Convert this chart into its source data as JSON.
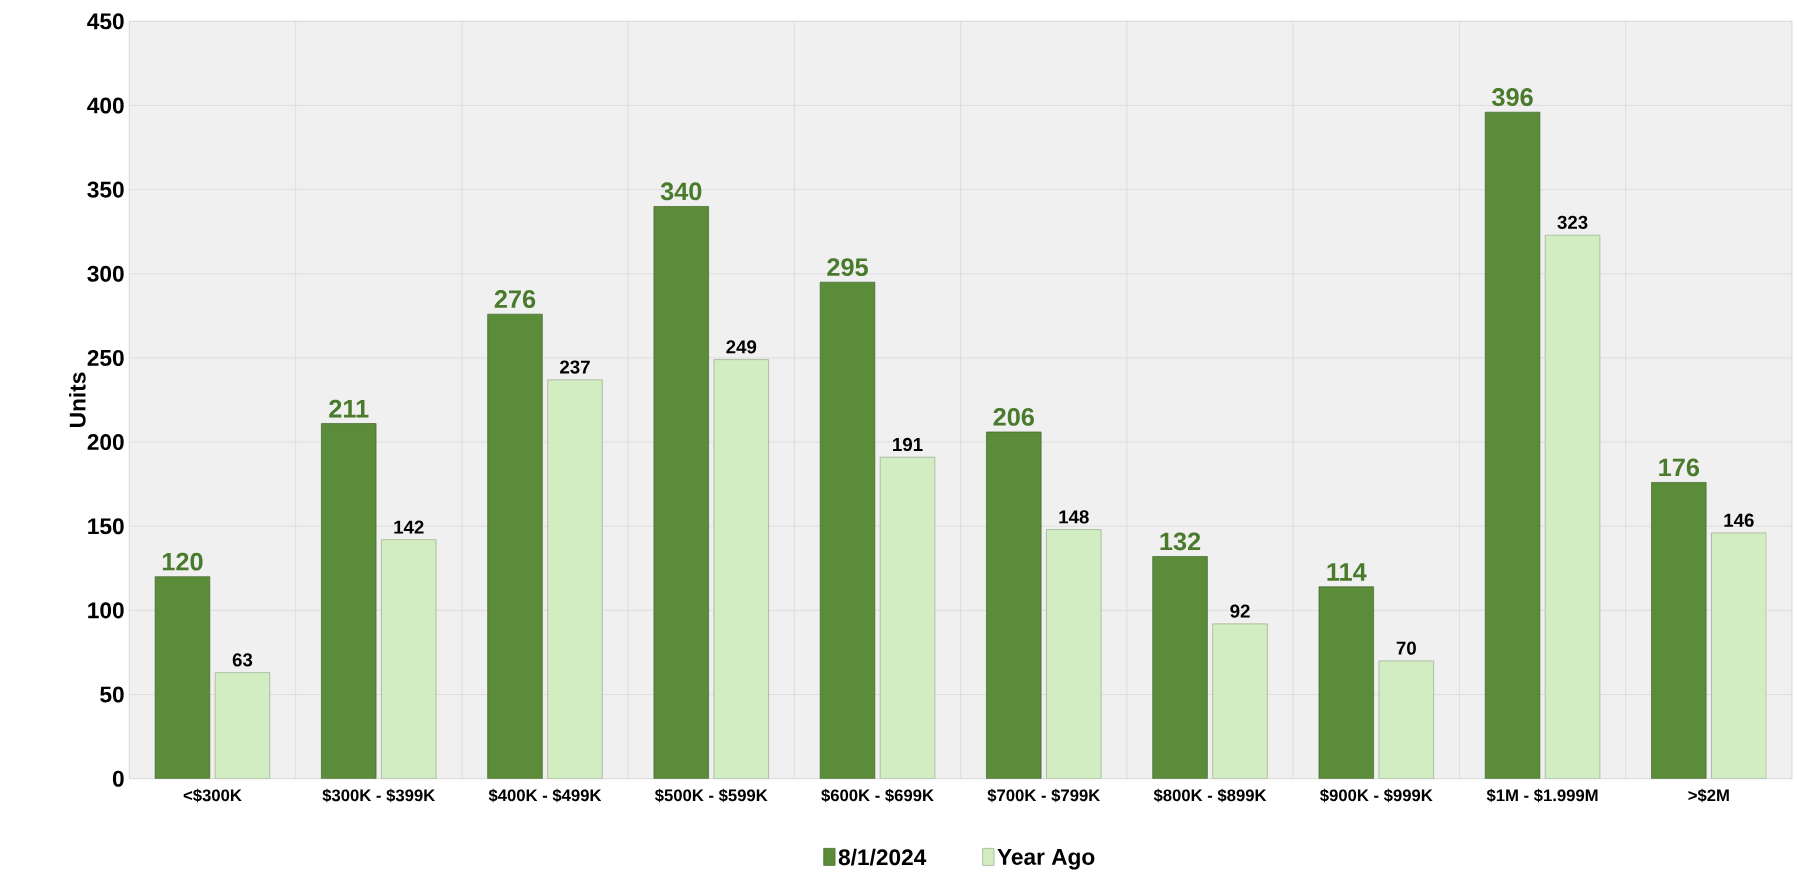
{
  "chart_data": {
    "type": "bar",
    "ylabel": "Units",
    "categories": [
      "<$300K",
      "$300K - $399K",
      "$400K - $499K",
      "$500K - $599K",
      "$600K - $699K",
      "$700K - $799K",
      "$800K - $899K",
      "$900K - $999K",
      "$1M - $1.999M",
      ">$2M"
    ],
    "series": [
      {
        "name": "8/1/2024",
        "color": "#5b8c3a",
        "values": [
          120,
          211,
          276,
          340,
          295,
          206,
          132,
          114,
          396,
          176
        ]
      },
      {
        "name": "Year Ago",
        "color": "#d3edc3",
        "values": [
          63,
          142,
          237,
          249,
          191,
          148,
          92,
          70,
          323,
          146
        ]
      }
    ],
    "ylim": [
      0,
      450
    ],
    "yticks": [
      0,
      50,
      100,
      150,
      200,
      250,
      300,
      350,
      400,
      450
    ],
    "grid": true,
    "legend": "bottom",
    "data_labels": true
  }
}
